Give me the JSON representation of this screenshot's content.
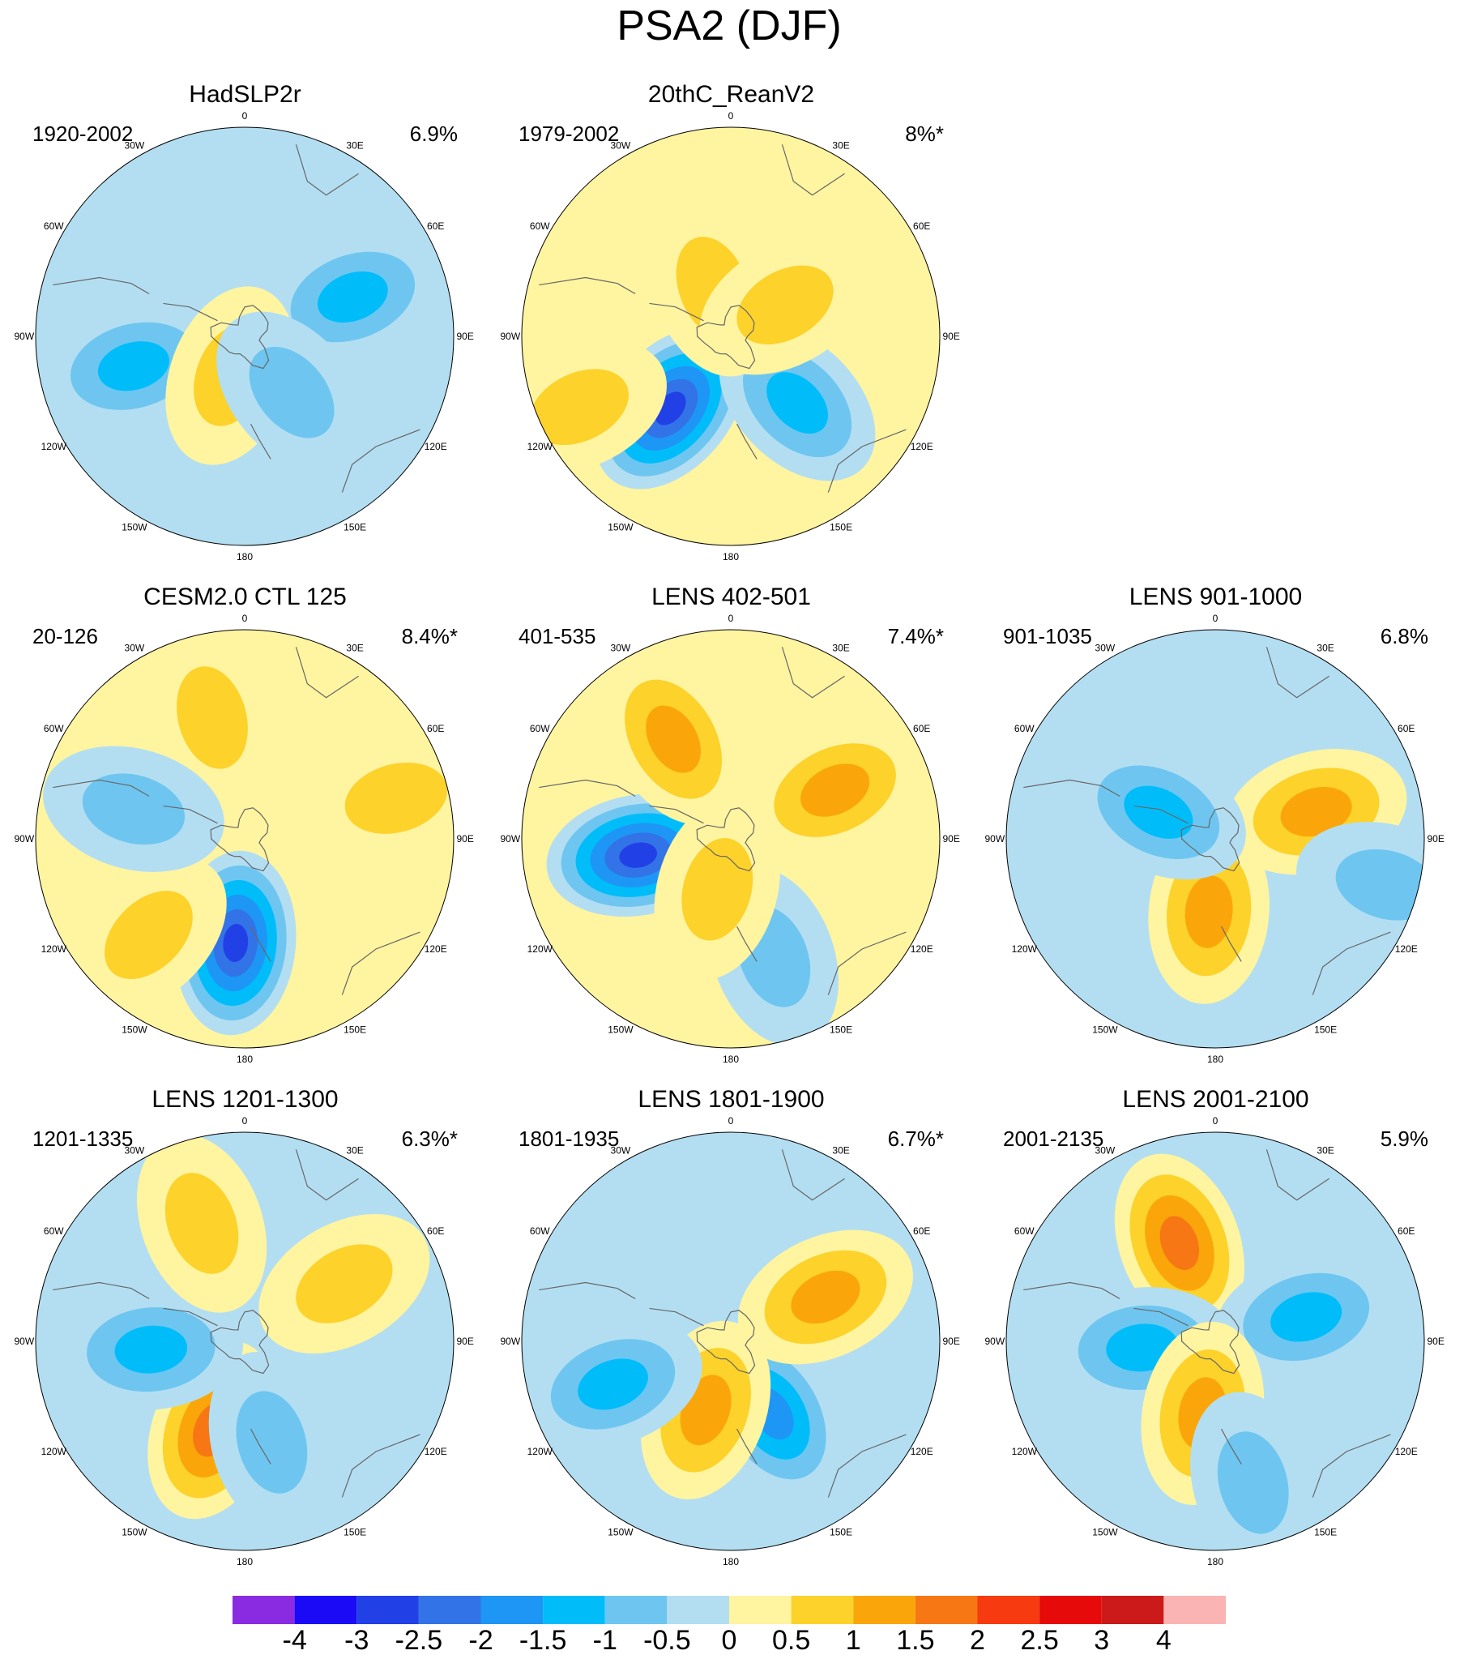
{
  "figure_title": "PSA2 (DJF)",
  "lon_labels": [
    "0",
    "30E",
    "60E",
    "90E",
    "120E",
    "150E",
    "180",
    "150W",
    "120W",
    "90W",
    "60W",
    "30W"
  ],
  "colorbar": {
    "labels": [
      "-4",
      "-3",
      "-2.5",
      "-2",
      "-1.5",
      "-1",
      "-0.5",
      "0",
      "0.5",
      "1",
      "1.5",
      "2",
      "2.5",
      "3",
      "4"
    ],
    "colors": [
      "#8a2be2",
      "#1a0af5",
      "#2140e6",
      "#3373e8",
      "#1e96f5",
      "#00bdfa",
      "#6ec6f0",
      "#b3def2",
      "#fff4a0",
      "#fcd22b",
      "#faa60a",
      "#f77714",
      "#f73a0f",
      "#e60a0a",
      "#cc1a1a",
      "#fab4b4"
    ]
  },
  "chart_data": [
    {
      "type": "heatmap",
      "title": "HadSLP2r",
      "period": "1920-2002",
      "variance": "6.9%",
      "features": [
        {
          "sign": "neg",
          "level": -1.5,
          "lon": 70,
          "colat": 0.55
        },
        {
          "sign": "neg",
          "level": -1.5,
          "lon": -105,
          "colat": 0.55
        },
        {
          "sign": "pos",
          "level": 1.0,
          "lon": -160,
          "colat": 0.2
        },
        {
          "sign": "neg",
          "level": -1.0,
          "lon": 140,
          "colat": 0.35
        }
      ]
    },
    {
      "type": "heatmap",
      "title": "20thC_ReanV2",
      "period": "1979-2002",
      "variance": "8%*",
      "features": [
        {
          "sign": "neg",
          "level": -3.0,
          "lon": -140,
          "colat": 0.45
        },
        {
          "sign": "neg",
          "level": -1.5,
          "lon": 135,
          "colat": 0.45
        },
        {
          "sign": "pos",
          "level": 1.0,
          "lon": -20,
          "colat": 0.25
        },
        {
          "sign": "pos",
          "level": 1.0,
          "lon": 60,
          "colat": 0.3
        },
        {
          "sign": "pos",
          "level": 1.0,
          "lon": -115,
          "colat": 0.8
        }
      ]
    },
    {
      "type": "heatmap",
      "title": "CESM2.0 CTL 125",
      "period": "20-126",
      "variance": "8.4%*",
      "features": [
        {
          "sign": "pos",
          "level": 1.0,
          "lon": -15,
          "colat": 0.6
        },
        {
          "sign": "pos",
          "level": 1.0,
          "lon": 75,
          "colat": 0.75
        },
        {
          "sign": "neg",
          "level": -3.0,
          "lon": -175,
          "colat": 0.5
        },
        {
          "sign": "pos",
          "level": 1.0,
          "lon": -135,
          "colat": 0.65
        },
        {
          "sign": "neg",
          "level": -1.0,
          "lon": -75,
          "colat": 0.55
        }
      ]
    },
    {
      "type": "heatmap",
      "title": "LENS 402-501",
      "period": "401-535",
      "variance": "7.4%*",
      "features": [
        {
          "sign": "neg",
          "level": -3.0,
          "lon": -100,
          "colat": 0.45
        },
        {
          "sign": "pos",
          "level": 1.5,
          "lon": 65,
          "colat": 0.55
        },
        {
          "sign": "pos",
          "level": 1.5,
          "lon": -30,
          "colat": 0.55
        },
        {
          "sign": "neg",
          "level": -1.0,
          "lon": 160,
          "colat": 0.6
        },
        {
          "sign": "pos",
          "level": 1.0,
          "lon": -165,
          "colat": 0.25
        }
      ]
    },
    {
      "type": "heatmap",
      "title": "LENS 901-1000",
      "period": "901-1035",
      "variance": "6.8%",
      "features": [
        {
          "sign": "pos",
          "level": 1.5,
          "lon": 75,
          "colat": 0.5
        },
        {
          "sign": "pos",
          "level": 1.5,
          "lon": -175,
          "colat": 0.35
        },
        {
          "sign": "neg",
          "level": -1.5,
          "lon": -65,
          "colat": 0.3
        },
        {
          "sign": "neg",
          "level": -1.0,
          "lon": 105,
          "colat": 0.85
        }
      ]
    },
    {
      "type": "heatmap",
      "title": "LENS 1201-1300",
      "period": "1201-1335",
      "variance": "6.3%*",
      "features": [
        {
          "sign": "pos",
          "level": 2.0,
          "lon": -160,
          "colat": 0.45
        },
        {
          "sign": "neg",
          "level": -1.5,
          "lon": -95,
          "colat": 0.45
        },
        {
          "sign": "pos",
          "level": 1.0,
          "lon": 60,
          "colat": 0.55
        },
        {
          "sign": "pos",
          "level": 1.0,
          "lon": -20,
          "colat": 0.6
        },
        {
          "sign": "neg",
          "level": -1.0,
          "lon": 165,
          "colat": 0.5
        }
      ]
    },
    {
      "type": "heatmap",
      "title": "LENS 1801-1900",
      "period": "1801-1935",
      "variance": "6.7%*",
      "features": [
        {
          "sign": "neg",
          "level": -2.0,
          "lon": 150,
          "colat": 0.4
        },
        {
          "sign": "pos",
          "level": 1.5,
          "lon": 65,
          "colat": 0.5
        },
        {
          "sign": "pos",
          "level": 1.5,
          "lon": -160,
          "colat": 0.35
        },
        {
          "sign": "neg",
          "level": -1.5,
          "lon": -110,
          "colat": 0.6
        }
      ]
    },
    {
      "type": "heatmap",
      "title": "LENS 2001-2100",
      "period": "2001-2135",
      "variance": "5.9%",
      "features": [
        {
          "sign": "pos",
          "level": 2.0,
          "lon": -20,
          "colat": 0.5
        },
        {
          "sign": "neg",
          "level": -1.5,
          "lon": 75,
          "colat": 0.45
        },
        {
          "sign": "neg",
          "level": -1.5,
          "lon": -95,
          "colat": 0.35
        },
        {
          "sign": "pos",
          "level": 1.5,
          "lon": -170,
          "colat": 0.35
        },
        {
          "sign": "neg",
          "level": -1.0,
          "lon": 165,
          "colat": 0.7
        }
      ]
    }
  ]
}
